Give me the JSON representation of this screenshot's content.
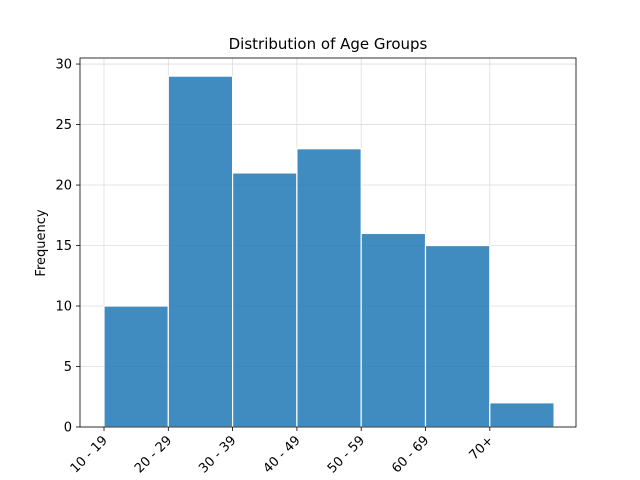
{
  "chart_data": {
    "type": "bar",
    "title": "Distribution of Age Groups",
    "xlabel": "",
    "ylabel": "Frequency",
    "categories": [
      "10 - 19",
      "20 - 29",
      "30 - 39",
      "40 - 49",
      "50 - 59",
      "60 - 69",
      "70+"
    ],
    "values": [
      10,
      29,
      21,
      23,
      16,
      15,
      2
    ],
    "ylim": [
      0,
      30.5
    ],
    "yticks": [
      0,
      5,
      10,
      15,
      20,
      25,
      30
    ],
    "grid": true,
    "legend": false,
    "bar_color": "#1f77b4",
    "bar_edge_color": "#ffffff",
    "x_tick_rotation": 45
  }
}
